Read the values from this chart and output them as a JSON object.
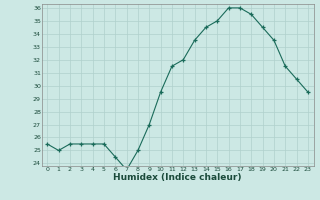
{
  "x": [
    0,
    1,
    2,
    3,
    4,
    5,
    6,
    7,
    8,
    9,
    10,
    11,
    12,
    13,
    14,
    15,
    16,
    17,
    18,
    19,
    20,
    21,
    22,
    23
  ],
  "y": [
    25.5,
    25.0,
    25.5,
    25.5,
    25.5,
    25.5,
    24.5,
    23.5,
    25.0,
    27.0,
    29.5,
    31.5,
    32.0,
    33.5,
    34.5,
    35.0,
    36.0,
    36.0,
    35.5,
    34.5,
    33.5,
    31.5,
    30.5,
    29.5
  ],
  "xlabel": "Humidex (Indice chaleur)",
  "xlim": [
    -0.5,
    23.5
  ],
  "ylim": [
    23.8,
    36.3
  ],
  "yticks": [
    24,
    25,
    26,
    27,
    28,
    29,
    30,
    31,
    32,
    33,
    34,
    35,
    36
  ],
  "xticks": [
    0,
    1,
    2,
    3,
    4,
    5,
    6,
    7,
    8,
    9,
    10,
    11,
    12,
    13,
    14,
    15,
    16,
    17,
    18,
    19,
    20,
    21,
    22,
    23
  ],
  "line_color": "#1a6b5a",
  "marker_color": "#1a6b5a",
  "bg_color": "#cce8e4",
  "grid_color": "#b0d0cc",
  "axes_bg": "#cce8e4"
}
